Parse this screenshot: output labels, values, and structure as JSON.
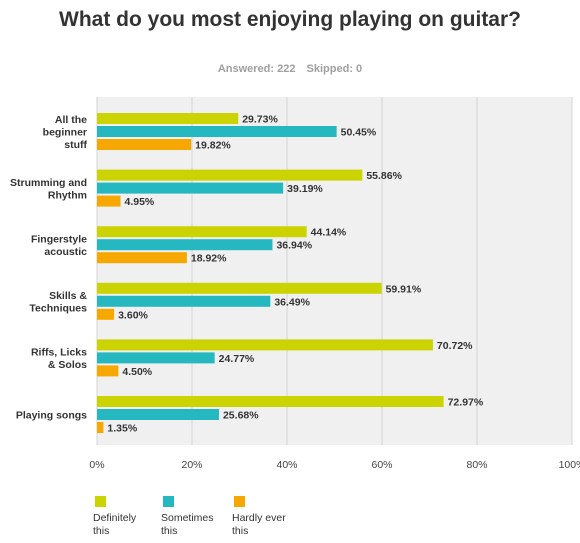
{
  "page": {
    "title": "What do you most enjoying playing on guitar?",
    "answered_label": "Answered: 222",
    "skipped_label": "Skipped: 0"
  },
  "chart_data": {
    "type": "bar",
    "orientation": "horizontal",
    "categories": [
      "All the beginner stuff",
      "Strumming and Rhythm",
      "Fingerstyle acoustic",
      "Skills & Techniques",
      "Riffs, Licks & Solos",
      "Playing songs"
    ],
    "category_lines": [
      [
        "All the",
        "beginner",
        "stuff"
      ],
      [
        "Strumming and",
        "Rhythm"
      ],
      [
        "Fingerstyle",
        "acoustic"
      ],
      [
        "Skills &",
        "Techniques"
      ],
      [
        "Riffs, Licks",
        "& Solos"
      ],
      [
        "Playing songs"
      ]
    ],
    "series": [
      {
        "name": "Definitely this",
        "color": "#cbd402",
        "values": [
          29.73,
          55.86,
          44.14,
          59.91,
          70.72,
          72.97
        ]
      },
      {
        "name": "Sometimes this",
        "color": "#25b8c1",
        "values": [
          50.45,
          39.19,
          36.94,
          36.49,
          24.77,
          25.68
        ]
      },
      {
        "name": "Hardly ever this",
        "color": "#f7a800",
        "values": [
          19.82,
          4.95,
          18.92,
          3.6,
          4.5,
          1.35
        ]
      }
    ],
    "xlim": [
      0,
      100
    ],
    "x_ticks": [
      "0%",
      "20%",
      "40%",
      "60%",
      "80%",
      "100%"
    ],
    "grid": true,
    "legend_position": "bottom-left",
    "legend_lines": [
      [
        "Definitely",
        "this"
      ],
      [
        "Sometimes",
        "this"
      ],
      [
        "Hardly ever",
        "this"
      ]
    ]
  }
}
